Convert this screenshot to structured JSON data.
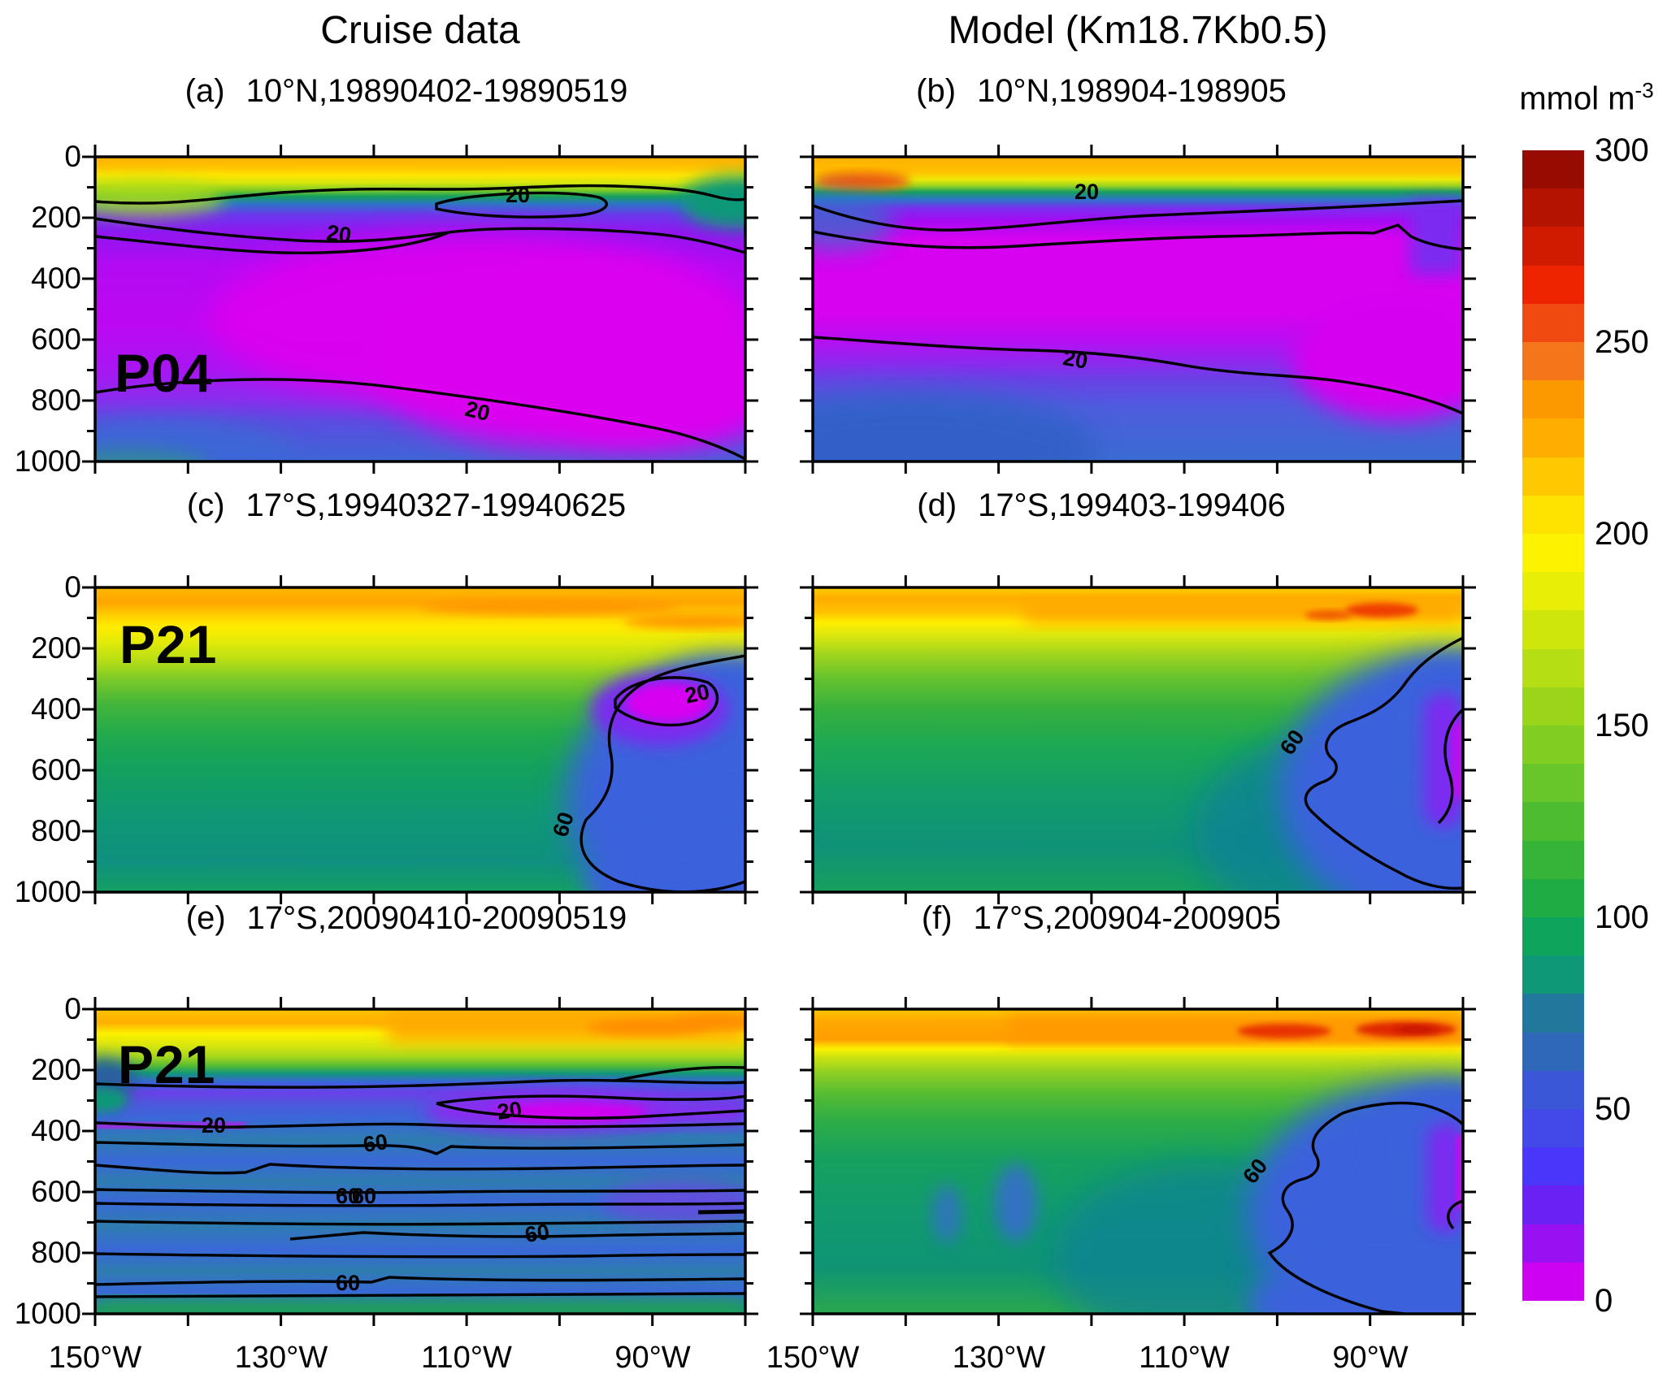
{
  "figure": {
    "column_titles": [
      "Cruise data",
      "Model (Km18.7Kb0.5)"
    ],
    "panels": [
      {
        "tag": "(a)",
        "title": "10°N,19890402-19890519",
        "station": "P04",
        "contour_labels": [
          "20",
          "20",
          "20"
        ]
      },
      {
        "tag": "(b)",
        "title": "10°N,198904-198905",
        "contour_labels": [
          "20",
          "20"
        ]
      },
      {
        "tag": "(c)",
        "title": "17°S,19940327-19940625",
        "station": "P21",
        "contour_labels": [
          "20",
          "60"
        ]
      },
      {
        "tag": "(d)",
        "title": "17°S,199403-199406",
        "contour_labels": [
          "60"
        ]
      },
      {
        "tag": "(e)",
        "title": "17°S,20090410-20090519",
        "station": "P21",
        "contour_labels": [
          "20",
          "20",
          "60",
          "60",
          "60",
          "60",
          "60"
        ]
      },
      {
        "tag": "(f)",
        "title": "17°S,200904-200905",
        "contour_labels": [
          "60"
        ]
      }
    ],
    "axes": {
      "x_labels": [
        "150°W",
        "130°W",
        "110°W",
        "90°W"
      ],
      "y_labels": [
        "0",
        "200",
        "400",
        "600",
        "800",
        "1000"
      ]
    },
    "colorbar": {
      "title_main": "mmol m",
      "title_exp": "-3",
      "tick_labels": [
        "300",
        "250",
        "200",
        "150",
        "100",
        "50",
        "0"
      ],
      "colors_top_to_bottom": [
        "#970B00",
        "#B31300",
        "#D11B00",
        "#EE2400",
        "#F04A10",
        "#F5761A",
        "#FC9800",
        "#FFAE00",
        "#FFC800",
        "#FFE300",
        "#FDF200",
        "#E9EE06",
        "#CFE60D",
        "#B5DE14",
        "#9BD51B",
        "#81CD22",
        "#68C52A",
        "#4EBC31",
        "#35B438",
        "#1FAC44",
        "#0FA45C",
        "#0F9878",
        "#22789C",
        "#2F68B8",
        "#3A57D8",
        "#4348E8",
        "#4A36F8",
        "#6A22F4",
        "#9711F2",
        "#CC02F0"
      ]
    }
  },
  "chart_data": {
    "type": "heatmap",
    "subtype": "filled-contour ocean sections (dissolved concentration, depth vs longitude)",
    "units": "mmol m-3",
    "layout": {
      "rows": 3,
      "cols": 2,
      "legend_position": "right colorbar",
      "grid": false
    },
    "x_axis": {
      "tick_labels": [
        "150°W",
        "130°W",
        "110°W",
        "90°W"
      ],
      "range_deg_west": [
        150,
        80
      ],
      "tick_step_deg": 10
    },
    "y_axis": {
      "tick_labels": [
        0,
        200,
        400,
        600,
        800,
        1000
      ],
      "range": [
        0,
        1000
      ],
      "minor_step": 100,
      "direction": "down"
    },
    "colorbar": {
      "title": "mmol m⁻³",
      "tick_values": [
        0,
        50,
        100,
        150,
        200,
        250,
        300
      ],
      "band_step": 10
    },
    "panels": [
      {
        "id": "a",
        "column": "Cruise data",
        "section": "10°N",
        "period": "19890402-19890519",
        "cruise": "P04",
        "labeled_contour_values": [
          20,
          20,
          20
        ],
        "field_summary": "surface ~200-230 at 0-50 m; sharp oxycline by ~120 m; values <20 from ~150-850 m with magenta core <10 centered ~300-750 m east of 125°W; ~20-60 below 850 m"
      },
      {
        "id": "b",
        "column": "Model (Km18.7Kb0.5)",
        "section": "10°N",
        "period": "198904-198905",
        "labeled_contour_values": [
          20,
          20
        ],
        "field_summary": "surface ~220-240 at 0-40 m; 20-contour near 100 m; broad <10 zone ~150-600 m deepening eastward; ~30-60 below 700 m"
      },
      {
        "id": "c",
        "column": "Cruise data",
        "section": "17°S",
        "period": "19940327-19940625",
        "cruise": "P21",
        "labeled_contour_values": [
          20,
          60
        ],
        "field_summary": "surface ~220-240; yellow ~200 to ~200 m in west; green 100-150 mid-depths west; low-oxygen pool <60 east of 105°W below ~300 m with core <20 near 90°W at ~300-450 m"
      },
      {
        "id": "d",
        "column": "Model (Km18.7Kb0.5)",
        "section": "17°S",
        "period": "199403-199406",
        "labeled_contour_values": [
          60
        ],
        "field_summary": "surface ~220-250 with maximum ~260 near coast; green 100-150 mid-depths west; <60 pool east of 100°W below ~250 m, minimum <20 at eastern edge ~400-650 m"
      },
      {
        "id": "e",
        "column": "Cruise data",
        "section": "17°S",
        "period": "20090410-20090519",
        "cruise": "P21",
        "labeled_contour_values": [
          20,
          20,
          60,
          60,
          60,
          60,
          60
        ],
        "field_summary": "surface ~220-250; thin yellow-green layer to ~200 m; layered 40-80 banding from ~250-1000 m with <20 lens ~300-400 m east of 110°W and thin <20 streak near 150°W at ~380 m"
      },
      {
        "id": "f",
        "column": "Model (Km18.7Kb0.5)",
        "section": "17°S",
        "period": "200904-200905",
        "labeled_contour_values": [
          60
        ],
        "field_summary": "surface ~230-270 with reddish maxima near 95-88°W; green 100-150 mid-depths west; <60 pool east of 100°W below ~300 m, minimum <20 at eastern edge ~400-650 m"
      }
    ]
  }
}
